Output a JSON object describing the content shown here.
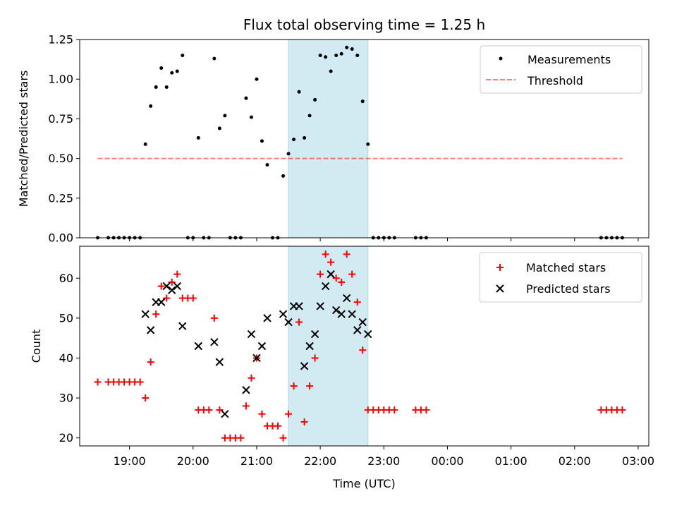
{
  "chart_data": [
    {
      "type": "scatter",
      "title": "Flux total observing time = 1.25 h",
      "xlabel": "",
      "ylabel": "Matched/Predicted stars",
      "xlim": [
        "18:13",
        "03:10"
      ],
      "ylim": [
        0,
        1.25
      ],
      "yticks": [
        "0.00",
        "0.25",
        "0.50",
        "0.75",
        "1.00",
        "1.25"
      ],
      "legend_position": "top-right",
      "shaded_span": {
        "start": "21:30",
        "end": "22:45",
        "color": "#add8e6"
      },
      "threshold": {
        "name": "Threshold",
        "y": 0.5,
        "x_start": "18:30",
        "x_end": "02:45",
        "color": "#ff0000",
        "style": "dashed"
      },
      "series": [
        {
          "name": "Measurements",
          "color": "#000000",
          "marker": "dot",
          "points": [
            [
              "18:30",
              0
            ],
            [
              "18:40",
              0
            ],
            [
              "18:45",
              0
            ],
            [
              "18:50",
              0
            ],
            [
              "18:55",
              0
            ],
            [
              "19:00",
              0
            ],
            [
              "19:05",
              0
            ],
            [
              "19:10",
              0
            ],
            [
              "19:15",
              0.59
            ],
            [
              "19:20",
              0.83
            ],
            [
              "19:25",
              0.95
            ],
            [
              "19:30",
              1.07
            ],
            [
              "19:35",
              0.95
            ],
            [
              "19:40",
              1.04
            ],
            [
              "19:45",
              1.05
            ],
            [
              "19:50",
              1.15
            ],
            [
              "19:55",
              0
            ],
            [
              "20:00",
              0
            ],
            [
              "20:05",
              0.63
            ],
            [
              "20:10",
              0
            ],
            [
              "20:15",
              0
            ],
            [
              "20:20",
              1.13
            ],
            [
              "20:25",
              0.69
            ],
            [
              "20:30",
              0.77
            ],
            [
              "20:35",
              0
            ],
            [
              "20:40",
              0
            ],
            [
              "20:45",
              0
            ],
            [
              "20:50",
              0.88
            ],
            [
              "20:55",
              0.76
            ],
            [
              "21:00",
              1.0
            ],
            [
              "21:05",
              0.61
            ],
            [
              "21:10",
              0.46
            ],
            [
              "21:15",
              0
            ],
            [
              "21:20",
              0
            ],
            [
              "21:25",
              0.39
            ],
            [
              "21:30",
              0.53
            ],
            [
              "21:35",
              0.62
            ],
            [
              "21:40",
              0.92
            ],
            [
              "21:45",
              0.63
            ],
            [
              "21:50",
              0.77
            ],
            [
              "21:55",
              0.87
            ],
            [
              "22:00",
              1.15
            ],
            [
              "22:05",
              1.14
            ],
            [
              "22:10",
              1.05
            ],
            [
              "22:15",
              1.15
            ],
            [
              "22:20",
              1.16
            ],
            [
              "22:25",
              1.2
            ],
            [
              "22:30",
              1.19
            ],
            [
              "22:35",
              1.15
            ],
            [
              "22:40",
              0.86
            ],
            [
              "22:45",
              0.59
            ],
            [
              "22:50",
              0
            ],
            [
              "22:55",
              0
            ],
            [
              "23:00",
              0
            ],
            [
              "23:05",
              0
            ],
            [
              "23:10",
              0
            ],
            [
              "23:30",
              0
            ],
            [
              "23:35",
              0
            ],
            [
              "23:40",
              0
            ],
            [
              "02:25",
              0
            ],
            [
              "02:30",
              0
            ],
            [
              "02:35",
              0
            ],
            [
              "02:40",
              0
            ],
            [
              "02:45",
              0
            ]
          ]
        }
      ]
    },
    {
      "type": "scatter",
      "title": "",
      "xlabel": "Time (UTC)",
      "ylabel": "Count",
      "xlim": [
        "18:13",
        "03:10"
      ],
      "ylim": [
        18,
        68
      ],
      "yticks": [
        "20",
        "30",
        "40",
        "50",
        "60"
      ],
      "xticks": [
        "19:00",
        "20:00",
        "21:00",
        "22:00",
        "23:00",
        "00:00",
        "01:00",
        "02:00",
        "03:00"
      ],
      "legend_position": "top-right",
      "shaded_span": {
        "start": "21:30",
        "end": "22:45",
        "color": "#add8e6"
      },
      "series": [
        {
          "name": "Matched stars",
          "color": "#ff0000",
          "marker": "plus",
          "points": [
            [
              "18:30",
              34
            ],
            [
              "18:40",
              34
            ],
            [
              "18:45",
              34
            ],
            [
              "18:50",
              34
            ],
            [
              "18:55",
              34
            ],
            [
              "19:00",
              34
            ],
            [
              "19:05",
              34
            ],
            [
              "19:10",
              34
            ],
            [
              "19:15",
              30
            ],
            [
              "19:20",
              39
            ],
            [
              "19:25",
              51
            ],
            [
              "19:30",
              58
            ],
            [
              "19:35",
              55
            ],
            [
              "19:40",
              59
            ],
            [
              "19:45",
              61
            ],
            [
              "19:50",
              55
            ],
            [
              "19:55",
              55
            ],
            [
              "20:00",
              55
            ],
            [
              "20:05",
              27
            ],
            [
              "20:10",
              27
            ],
            [
              "20:15",
              27
            ],
            [
              "20:20",
              50
            ],
            [
              "20:25",
              27
            ],
            [
              "20:30",
              20
            ],
            [
              "20:35",
              20
            ],
            [
              "20:40",
              20
            ],
            [
              "20:45",
              20
            ],
            [
              "20:50",
              28
            ],
            [
              "20:55",
              35
            ],
            [
              "21:00",
              40
            ],
            [
              "21:05",
              26
            ],
            [
              "21:10",
              23
            ],
            [
              "21:15",
              23
            ],
            [
              "21:20",
              23
            ],
            [
              "21:25",
              20
            ],
            [
              "21:30",
              26
            ],
            [
              "21:35",
              33
            ],
            [
              "21:40",
              49
            ],
            [
              "21:45",
              24
            ],
            [
              "21:50",
              33
            ],
            [
              "21:55",
              40
            ],
            [
              "22:00",
              61
            ],
            [
              "22:05",
              66
            ],
            [
              "22:10",
              64
            ],
            [
              "22:15",
              60
            ],
            [
              "22:20",
              59
            ],
            [
              "22:25",
              66
            ],
            [
              "22:30",
              61
            ],
            [
              "22:35",
              54
            ],
            [
              "22:40",
              42
            ],
            [
              "22:45",
              27
            ],
            [
              "22:50",
              27
            ],
            [
              "22:55",
              27
            ],
            [
              "23:00",
              27
            ],
            [
              "23:05",
              27
            ],
            [
              "23:10",
              27
            ],
            [
              "23:30",
              27
            ],
            [
              "23:35",
              27
            ],
            [
              "23:40",
              27
            ],
            [
              "02:25",
              27
            ],
            [
              "02:30",
              27
            ],
            [
              "02:35",
              27
            ],
            [
              "02:40",
              27
            ],
            [
              "02:45",
              27
            ]
          ]
        },
        {
          "name": "Predicted stars",
          "color": "#000000",
          "marker": "x",
          "points": [
            [
              "19:15",
              51
            ],
            [
              "19:20",
              47
            ],
            [
              "19:25",
              54
            ],
            [
              "19:30",
              54
            ],
            [
              "19:35",
              58
            ],
            [
              "19:40",
              57
            ],
            [
              "19:45",
              58
            ],
            [
              "19:50",
              48
            ],
            [
              "20:05",
              43
            ],
            [
              "20:20",
              44
            ],
            [
              "20:25",
              39
            ],
            [
              "20:30",
              26
            ],
            [
              "20:50",
              32
            ],
            [
              "20:55",
              46
            ],
            [
              "21:00",
              40
            ],
            [
              "21:05",
              43
            ],
            [
              "21:10",
              50
            ],
            [
              "21:25",
              51
            ],
            [
              "21:30",
              49
            ],
            [
              "21:35",
              53
            ],
            [
              "21:40",
              53
            ],
            [
              "21:45",
              38
            ],
            [
              "21:50",
              43
            ],
            [
              "21:55",
              46
            ],
            [
              "22:00",
              53
            ],
            [
              "22:05",
              58
            ],
            [
              "22:10",
              61
            ],
            [
              "22:15",
              52
            ],
            [
              "22:20",
              51
            ],
            [
              "22:25",
              55
            ],
            [
              "22:30",
              51
            ],
            [
              "22:35",
              47
            ],
            [
              "22:40",
              49
            ],
            [
              "22:45",
              46
            ]
          ]
        }
      ]
    }
  ]
}
